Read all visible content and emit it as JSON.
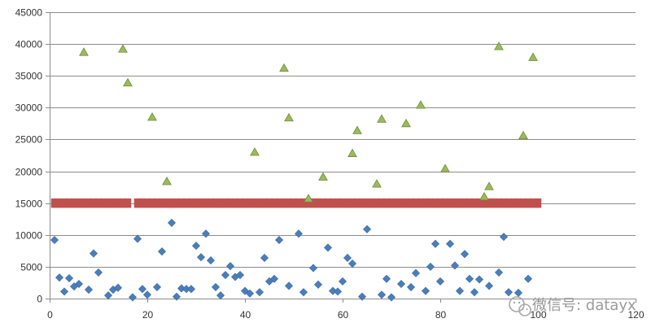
{
  "chart_data": {
    "type": "scatter",
    "xlim": [
      0,
      120
    ],
    "ylim": [
      0,
      45000
    ],
    "x_ticks": [
      0,
      20,
      40,
      60,
      80,
      100,
      120
    ],
    "y_ticks": [
      0,
      5000,
      10000,
      15000,
      20000,
      25000,
      30000,
      35000,
      40000,
      45000
    ],
    "grid": "horizontal",
    "legend": "none",
    "title": "",
    "xlabel": "",
    "ylabel": "",
    "series": [
      {
        "marker": "diamond",
        "color": "#4a7ebb",
        "points": [
          [
            1,
            9200
          ],
          [
            2,
            3300
          ],
          [
            3,
            1100
          ],
          [
            4,
            3200
          ],
          [
            5,
            1900
          ],
          [
            6,
            2300
          ],
          [
            8,
            1400
          ],
          [
            9,
            7100
          ],
          [
            10,
            4100
          ],
          [
            12,
            500
          ],
          [
            13,
            1400
          ],
          [
            14,
            1700
          ],
          [
            17,
            200
          ],
          [
            18,
            9400
          ],
          [
            19,
            1500
          ],
          [
            20,
            600
          ],
          [
            22,
            1800
          ],
          [
            23,
            7400
          ],
          [
            25,
            11900
          ],
          [
            26,
            300
          ],
          [
            27,
            1600
          ],
          [
            28,
            1500
          ],
          [
            29,
            1500
          ],
          [
            30,
            8300
          ],
          [
            31,
            6500
          ],
          [
            32,
            10200
          ],
          [
            33,
            6000
          ],
          [
            34,
            1800
          ],
          [
            35,
            500
          ],
          [
            36,
            3700
          ],
          [
            37,
            5100
          ],
          [
            38,
            3400
          ],
          [
            39,
            3700
          ],
          [
            40,
            1200
          ],
          [
            41,
            800
          ],
          [
            43,
            1000
          ],
          [
            44,
            6400
          ],
          [
            45,
            2700
          ],
          [
            46,
            3100
          ],
          [
            47,
            9200
          ],
          [
            49,
            2000
          ],
          [
            51,
            10200
          ],
          [
            52,
            1000
          ],
          [
            54,
            4800
          ],
          [
            55,
            2200
          ],
          [
            57,
            8000
          ],
          [
            58,
            1200
          ],
          [
            59,
            1100
          ],
          [
            60,
            2700
          ],
          [
            61,
            6400
          ],
          [
            62,
            5500
          ],
          [
            64,
            300
          ],
          [
            65,
            10900
          ],
          [
            68,
            600
          ],
          [
            69,
            3100
          ],
          [
            70,
            200
          ],
          [
            72,
            2300
          ],
          [
            74,
            1800
          ],
          [
            75,
            4000
          ],
          [
            77,
            1200
          ],
          [
            78,
            5000
          ],
          [
            79,
            8600
          ],
          [
            80,
            2700
          ],
          [
            82,
            8600
          ],
          [
            83,
            5200
          ],
          [
            84,
            1200
          ],
          [
            85,
            7000
          ],
          [
            86,
            3100
          ],
          [
            87,
            1000
          ],
          [
            88,
            3000
          ],
          [
            90,
            2000
          ],
          [
            92,
            4100
          ],
          [
            93,
            9700
          ],
          [
            94,
            1000
          ],
          [
            96,
            900
          ],
          [
            98,
            3100
          ]
        ]
      },
      {
        "marker": "triangle",
        "color": "#9bbb59",
        "points": [
          [
            7,
            38700
          ],
          [
            15,
            39200
          ],
          [
            16,
            33900
          ],
          [
            21,
            28500
          ],
          [
            24,
            18400
          ],
          [
            42,
            23000
          ],
          [
            48,
            36200
          ],
          [
            49,
            28400
          ],
          [
            53,
            15700
          ],
          [
            56,
            19100
          ],
          [
            62,
            22800
          ],
          [
            63,
            26400
          ],
          [
            67,
            18000
          ],
          [
            68,
            28200
          ],
          [
            73,
            27500
          ],
          [
            76,
            30400
          ],
          [
            81,
            20400
          ],
          [
            89,
            16000
          ],
          [
            90,
            17600
          ],
          [
            92,
            39600
          ],
          [
            97,
            25600
          ],
          [
            99,
            37900
          ]
        ]
      },
      {
        "marker": "square",
        "color": "#c0504d",
        "points": [
          [
            1,
            15000
          ],
          [
            2,
            15000
          ],
          [
            3,
            15000
          ],
          [
            4,
            15000
          ],
          [
            5,
            15000
          ],
          [
            6,
            15000
          ],
          [
            7,
            15000
          ],
          [
            8,
            15000
          ],
          [
            9,
            15000
          ],
          [
            10,
            15000
          ],
          [
            11,
            15000
          ],
          [
            12,
            15000
          ],
          [
            13,
            15000
          ],
          [
            14,
            15000
          ],
          [
            15,
            15000
          ],
          [
            16,
            15000
          ],
          [
            18,
            15000
          ],
          [
            19,
            15000
          ],
          [
            20,
            15000
          ],
          [
            21,
            15000
          ],
          [
            22,
            15000
          ],
          [
            23,
            15000
          ],
          [
            24,
            15000
          ],
          [
            25,
            15000
          ],
          [
            26,
            15000
          ],
          [
            27,
            15000
          ],
          [
            28,
            15000
          ],
          [
            29,
            15000
          ],
          [
            30,
            15000
          ],
          [
            31,
            15000
          ],
          [
            32,
            15000
          ],
          [
            33,
            15000
          ],
          [
            34,
            15000
          ],
          [
            35,
            15000
          ],
          [
            36,
            15000
          ],
          [
            37,
            15000
          ],
          [
            38,
            15000
          ],
          [
            39,
            15000
          ],
          [
            40,
            15000
          ],
          [
            41,
            15000
          ],
          [
            42,
            15000
          ],
          [
            43,
            15000
          ],
          [
            44,
            15000
          ],
          [
            45,
            15000
          ],
          [
            46,
            15000
          ],
          [
            47,
            15000
          ],
          [
            48,
            15000
          ],
          [
            49,
            15000
          ],
          [
            50,
            15000
          ],
          [
            51,
            15000
          ],
          [
            52,
            15000
          ],
          [
            53,
            15000
          ],
          [
            54,
            15000
          ],
          [
            55,
            15000
          ],
          [
            56,
            15000
          ],
          [
            57,
            15000
          ],
          [
            58,
            15000
          ],
          [
            59,
            15000
          ],
          [
            60,
            15000
          ],
          [
            61,
            15000
          ],
          [
            62,
            15000
          ],
          [
            63,
            15000
          ],
          [
            64,
            15000
          ],
          [
            65,
            15000
          ],
          [
            66,
            15000
          ],
          [
            67,
            15000
          ],
          [
            68,
            15000
          ],
          [
            69,
            15000
          ],
          [
            70,
            15000
          ],
          [
            71,
            15000
          ],
          [
            72,
            15000
          ],
          [
            73,
            15000
          ],
          [
            74,
            15000
          ],
          [
            75,
            15000
          ],
          [
            76,
            15000
          ],
          [
            77,
            15000
          ],
          [
            78,
            15000
          ],
          [
            79,
            15000
          ],
          [
            80,
            15000
          ],
          [
            81,
            15000
          ],
          [
            82,
            15000
          ],
          [
            83,
            15000
          ],
          [
            84,
            15000
          ],
          [
            85,
            15000
          ],
          [
            86,
            15000
          ],
          [
            87,
            15000
          ],
          [
            88,
            15000
          ],
          [
            89,
            15000
          ],
          [
            90,
            15000
          ],
          [
            91,
            15000
          ],
          [
            92,
            15000
          ],
          [
            93,
            15000
          ],
          [
            94,
            15000
          ],
          [
            95,
            15000
          ],
          [
            96,
            15000
          ],
          [
            97,
            15000
          ],
          [
            98,
            15000
          ],
          [
            99,
            15000
          ],
          [
            100,
            15000
          ]
        ]
      }
    ]
  },
  "watermark": {
    "text": "微信号: datayx",
    "icon": "wechat-icon"
  }
}
